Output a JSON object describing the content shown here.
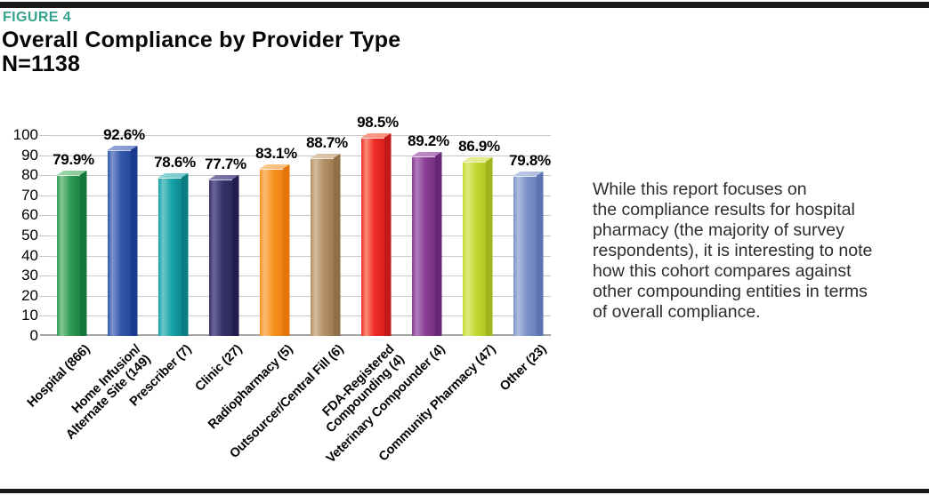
{
  "header": {
    "figure_label": "FIGURE 4",
    "title": "Overall Compliance by Provider Type",
    "n_label": "N=1138"
  },
  "annotation": {
    "text": "While this report focuses on\nthe compliance results for hospital\npharmacy (the majority of survey\nrespondents), it is interesting to note\nhow this cohort compares against\nother compounding entities in terms\nof overall compliance."
  },
  "colors": {
    "accent_teal": "#35A48E",
    "rule_black": "#1A1A1A",
    "gridline": "#C9C9C9",
    "axis_line": "#A6A6A6",
    "label_text": "#000000",
    "annotation_text": "#2D2D2D"
  },
  "chart_data": {
    "type": "bar",
    "title": "Overall Compliance by Provider Type",
    "subtitle": "N=1138",
    "bar_style": "3d",
    "grid": true,
    "legend": null,
    "xlabel": "",
    "ylabel": "",
    "ylim": [
      0,
      100
    ],
    "yticks": [
      0,
      10,
      20,
      30,
      40,
      50,
      60,
      70,
      80,
      90,
      100
    ],
    "categories": [
      "Hospital (866)",
      "Home Infusion/\nAlternate Site (149)",
      "Prescriber (7)",
      "Clinic (27)",
      "Radiopharmacy (5)",
      "Outsourcer/Central Fill (6)",
      "FDA-Registered\nCompounding (4)",
      "Veterinary Compounder (4)",
      "Community Pharmacy (47)",
      "Other (23)"
    ],
    "values": [
      79.9,
      92.6,
      78.6,
      77.7,
      83.1,
      88.7,
      98.5,
      89.2,
      86.9,
      79.8
    ],
    "value_labels": [
      "79.9%",
      "92.6%",
      "78.6%",
      "77.7%",
      "83.1%",
      "88.7%",
      "98.5%",
      "89.2%",
      "86.9%",
      "79.8%"
    ],
    "bar_colors": [
      {
        "light": "#85C795",
        "main": "#2E9B54",
        "front_dark": "#1F8343",
        "side": "#10763A",
        "top": "#A0D6AC"
      },
      {
        "light": "#7E94CF",
        "main": "#3156A8",
        "front_dark": "#27479A",
        "side": "#1B3A8F",
        "top": "#93A6DB"
      },
      {
        "light": "#6FC6C9",
        "main": "#13A3A8",
        "front_dark": "#0D898D",
        "side": "#077D81",
        "top": "#8FD3D6"
      },
      {
        "light": "#6B679C",
        "main": "#37336A",
        "front_dark": "#2B2759",
        "side": "#211D4E",
        "top": "#817DAE"
      },
      {
        "light": "#FBBC77",
        "main": "#F7941E",
        "front_dark": "#EF7F12",
        "side": "#E5740D",
        "top": "#FCC88D"
      },
      {
        "light": "#D5BC9E",
        "main": "#B28F63",
        "front_dark": "#9E7B51",
        "side": "#8F6F47",
        "top": "#DEC9B0"
      },
      {
        "light": "#F98B78",
        "main": "#EE2C24",
        "front_dark": "#DA1F1E",
        "side": "#C2191A",
        "top": "#FA9E8D"
      },
      {
        "light": "#B27CBC",
        "main": "#8A3D94",
        "front_dark": "#762F82",
        "side": "#672876",
        "top": "#C091C9"
      },
      {
        "light": "#DEE97F",
        "main": "#C5D82F",
        "front_dark": "#B0C322",
        "side": "#9FB31B",
        "top": "#E6EE99"
      },
      {
        "light": "#AEBCE0",
        "main": "#7B92C7",
        "front_dark": "#6A81BA",
        "side": "#5C74B0",
        "top": "#BBC7E5"
      }
    ]
  }
}
